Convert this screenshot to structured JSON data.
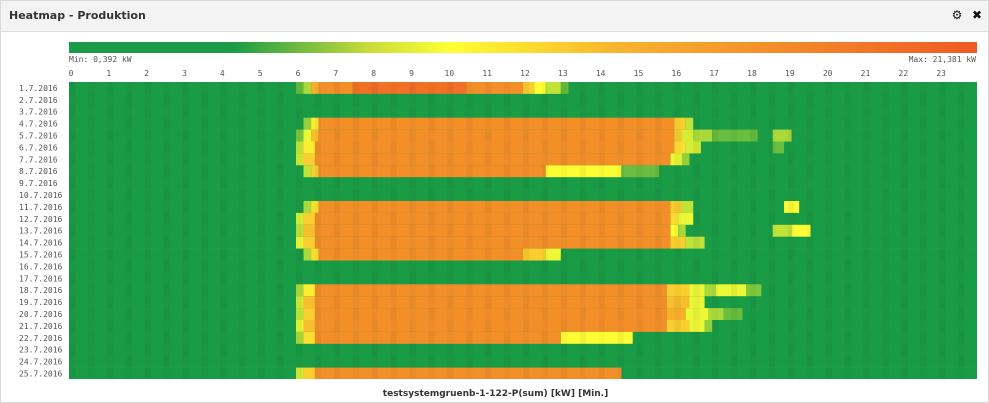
{
  "panel": {
    "title": "Heatmap - Produktion",
    "gear_icon": "gear-icon",
    "close_icon": "close-icon",
    "close_glyph": "✖",
    "gear_glyph": "⚙"
  },
  "colors": {
    "low": "#1a9b45",
    "mid": "#ffff33",
    "high": "#ee5a24"
  },
  "chart_data": {
    "type": "heatmap",
    "title": "",
    "xlabel": "testsystemgruenb-1-122-P(sum) [kW] [Min.]",
    "ylabel": "",
    "min_label": "Min: 0,392 kW",
    "max_label": "Max: 21,381 kW",
    "value_range": [
      0.392,
      21.381
    ],
    "unit": "kW",
    "x_ticks": [
      0,
      1,
      2,
      3,
      4,
      5,
      6,
      7,
      8,
      9,
      10,
      11,
      12,
      13,
      14,
      15,
      16,
      17,
      18,
      19,
      20,
      21,
      22,
      23
    ],
    "x_range": [
      0,
      24
    ],
    "resolution_minutes": 10,
    "rows": [
      {
        "date": "1.7.2016",
        "segments": [
          [
            6.0,
            6.2,
            4
          ],
          [
            6.2,
            6.4,
            7
          ],
          [
            6.4,
            6.6,
            16
          ],
          [
            6.6,
            7.5,
            18
          ],
          [
            7.5,
            10.5,
            20
          ],
          [
            10.5,
            12.0,
            18
          ],
          [
            12.0,
            12.3,
            14
          ],
          [
            12.3,
            12.6,
            11
          ],
          [
            12.6,
            13.0,
            8
          ],
          [
            13.0,
            13.2,
            4
          ]
        ]
      },
      {
        "date": "2.7.2016",
        "segments": []
      },
      {
        "date": "3.7.2016",
        "segments": []
      },
      {
        "date": "4.7.2016",
        "segments": [
          [
            6.2,
            6.4,
            6
          ],
          [
            6.4,
            6.6,
            12
          ],
          [
            6.6,
            16.0,
            18
          ],
          [
            16.0,
            16.3,
            14
          ],
          [
            16.3,
            16.5,
            8
          ]
        ]
      },
      {
        "date": "5.7.2016",
        "segments": [
          [
            6.0,
            6.2,
            5
          ],
          [
            6.2,
            6.4,
            10
          ],
          [
            6.4,
            6.6,
            15
          ],
          [
            6.6,
            16.0,
            18
          ],
          [
            16.0,
            16.2,
            14
          ],
          [
            16.2,
            16.5,
            9
          ],
          [
            16.5,
            17.0,
            7
          ],
          [
            17.0,
            18.2,
            4
          ],
          [
            18.6,
            19.1,
            7
          ]
        ]
      },
      {
        "date": "6.7.2016",
        "segments": [
          [
            6.0,
            6.2,
            8
          ],
          [
            6.2,
            6.5,
            12
          ],
          [
            6.5,
            16.0,
            18
          ],
          [
            16.0,
            16.3,
            13
          ],
          [
            16.3,
            16.7,
            9
          ],
          [
            18.6,
            18.9,
            4
          ]
        ]
      },
      {
        "date": "7.7.2016",
        "segments": [
          [
            6.0,
            6.2,
            9
          ],
          [
            6.2,
            6.5,
            14
          ],
          [
            6.5,
            15.9,
            18
          ],
          [
            15.9,
            16.2,
            10
          ],
          [
            16.2,
            16.4,
            6
          ]
        ]
      },
      {
        "date": "8.7.2016",
        "segments": [
          [
            6.2,
            6.4,
            8
          ],
          [
            6.4,
            6.6,
            14
          ],
          [
            6.6,
            12.6,
            18
          ],
          [
            12.6,
            14.6,
            11
          ],
          [
            14.6,
            15.6,
            4
          ]
        ]
      },
      {
        "date": "9.7.2016",
        "segments": []
      },
      {
        "date": "10.7.2016",
        "segments": []
      },
      {
        "date": "11.7.2016",
        "segments": [
          [
            6.2,
            6.4,
            7
          ],
          [
            6.4,
            6.6,
            13
          ],
          [
            6.6,
            15.9,
            18
          ],
          [
            15.9,
            16.2,
            14
          ],
          [
            16.2,
            16.5,
            8
          ],
          [
            18.9,
            19.3,
            11
          ]
        ]
      },
      {
        "date": "12.7.2016",
        "segments": [
          [
            6.0,
            6.2,
            9
          ],
          [
            6.2,
            6.5,
            14
          ],
          [
            6.5,
            15.9,
            18
          ],
          [
            15.9,
            16.1,
            13
          ],
          [
            16.1,
            16.5,
            10
          ]
        ]
      },
      {
        "date": "13.7.2016",
        "segments": [
          [
            6.0,
            6.2,
            8
          ],
          [
            6.2,
            6.5,
            15
          ],
          [
            6.5,
            15.9,
            18
          ],
          [
            15.9,
            16.1,
            11
          ],
          [
            16.1,
            16.3,
            7
          ],
          [
            18.6,
            19.1,
            8
          ],
          [
            19.1,
            19.6,
            11
          ]
        ]
      },
      {
        "date": "14.7.2016",
        "segments": [
          [
            6.0,
            6.2,
            10
          ],
          [
            6.2,
            6.5,
            14
          ],
          [
            6.5,
            15.9,
            18
          ],
          [
            15.9,
            16.3,
            14
          ],
          [
            16.3,
            16.8,
            8
          ]
        ]
      },
      {
        "date": "15.7.2016",
        "segments": [
          [
            6.2,
            6.4,
            7
          ],
          [
            6.4,
            6.6,
            13
          ],
          [
            6.6,
            12.0,
            18
          ],
          [
            12.0,
            12.6,
            14
          ],
          [
            12.6,
            13.0,
            10
          ]
        ]
      },
      {
        "date": "16.7.2016",
        "segments": []
      },
      {
        "date": "17.7.2016",
        "segments": []
      },
      {
        "date": "18.7.2016",
        "segments": [
          [
            6.0,
            6.2,
            7
          ],
          [
            6.2,
            6.5,
            12
          ],
          [
            6.5,
            15.8,
            18
          ],
          [
            15.8,
            16.4,
            14
          ],
          [
            16.4,
            16.8,
            10
          ],
          [
            16.8,
            17.1,
            7
          ],
          [
            17.1,
            17.9,
            10
          ],
          [
            17.9,
            18.3,
            5
          ]
        ]
      },
      {
        "date": "19.7.2016",
        "segments": [
          [
            6.0,
            6.2,
            9
          ],
          [
            6.2,
            6.5,
            15
          ],
          [
            6.5,
            15.8,
            18
          ],
          [
            15.8,
            16.4,
            15
          ],
          [
            16.4,
            16.8,
            10
          ]
        ]
      },
      {
        "date": "20.7.2016",
        "segments": [
          [
            6.0,
            6.2,
            8
          ],
          [
            6.2,
            6.5,
            14
          ],
          [
            6.5,
            15.8,
            18
          ],
          [
            15.8,
            16.3,
            16
          ],
          [
            16.3,
            16.9,
            10
          ],
          [
            16.9,
            17.3,
            7
          ],
          [
            17.3,
            17.8,
            4
          ]
        ]
      },
      {
        "date": "21.7.2016",
        "segments": [
          [
            6.0,
            6.2,
            10
          ],
          [
            6.2,
            6.5,
            15
          ],
          [
            6.5,
            15.8,
            18
          ],
          [
            15.8,
            16.4,
            14
          ],
          [
            16.4,
            16.8,
            10
          ],
          [
            16.8,
            17.0,
            6
          ]
        ]
      },
      {
        "date": "22.7.2016",
        "segments": [
          [
            6.0,
            6.2,
            7
          ],
          [
            6.2,
            6.5,
            13
          ],
          [
            6.5,
            13.0,
            18
          ],
          [
            13.0,
            14.9,
            11
          ]
        ]
      },
      {
        "date": "23.7.2016",
        "segments": []
      },
      {
        "date": "24.7.2016",
        "segments": []
      },
      {
        "date": "25.7.2016",
        "segments": [
          [
            6.0,
            6.2,
            9
          ],
          [
            6.2,
            6.5,
            14
          ],
          [
            6.5,
            14.6,
            18
          ]
        ]
      }
    ]
  }
}
